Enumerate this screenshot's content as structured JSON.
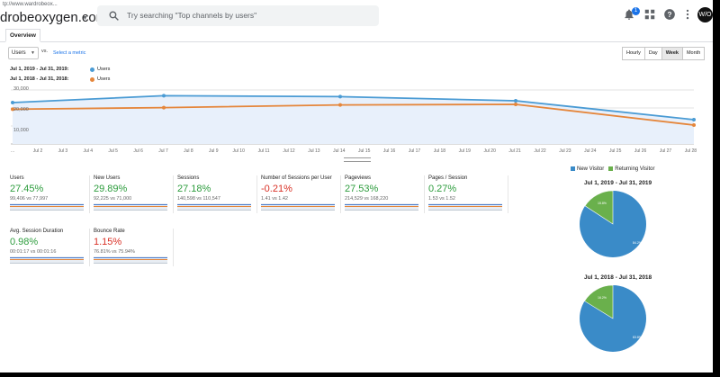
{
  "header": {
    "url": "tp://www.wardrobeox...",
    "site_name": "drobeoxygen.com",
    "search_placeholder": "Try searching \"Top channels by users\"",
    "notification_count": "1",
    "avatar_text": "W/O"
  },
  "tabs": [
    "Overview"
  ],
  "controls": {
    "metric_select": "Users",
    "vs_label": "vs.",
    "select_metric_link": "Select a metric",
    "period_buttons": [
      "Hourly",
      "Day",
      "Week",
      "Month"
    ],
    "active_period": "Week"
  },
  "legend": [
    {
      "range": "Jul 1, 2019 - Jul 31, 2019:",
      "label": "Users",
      "color": "#4a9bd4"
    },
    {
      "range": "Jul 1, 2018 - Jul 31, 2018:",
      "label": "Users",
      "color": "#e5863b"
    }
  ],
  "chart_data": {
    "type": "line",
    "x_ticks": [
      "...",
      "Jul 2",
      "Jul 3",
      "Jul 4",
      "Jul 5",
      "Jul 6",
      "Jul 7",
      "Jul 8",
      "Jul 9",
      "Jul 10",
      "Jul 11",
      "Jul 12",
      "Jul 13",
      "Jul 14",
      "Jul 15",
      "Jul 16",
      "Jul 17",
      "Jul 18",
      "Jul 19",
      "Jul 20",
      "Jul 21",
      "Jul 22",
      "Jul 23",
      "Jul 24",
      "Jul 25",
      "Jul 26",
      "Jul 27",
      "Jul 28"
    ],
    "y_ticks": [
      "30,000",
      "20,000",
      "10,000"
    ],
    "ylim": [
      0,
      30000
    ],
    "series": [
      {
        "name": "Users",
        "color": "#4a9bd4",
        "x": [
          "Jun 30",
          "Jul 7",
          "Jul 14",
          "Jul 21",
          "Jul 28"
        ],
        "values": [
          23000,
          26800,
          26300,
          24000,
          13500
        ]
      },
      {
        "name": "Users",
        "color": "#e5863b",
        "x": [
          "Jun 30",
          "Jul 7",
          "Jul 14",
          "Jul 21",
          "Jul 28"
        ],
        "values": [
          19300,
          20200,
          21700,
          22000,
          10500
        ]
      }
    ],
    "grid": true
  },
  "metrics": [
    {
      "name": "Users",
      "value": "27.45%",
      "trend": "up",
      "comparison": "99,406 vs 77,997"
    },
    {
      "name": "New Users",
      "value": "29.89%",
      "trend": "up",
      "comparison": "92,225 vs 71,000"
    },
    {
      "name": "Sessions",
      "value": "27.18%",
      "trend": "up",
      "comparison": "140,598 vs 110,547"
    },
    {
      "name": "Number of Sessions per User",
      "value": "-0.21%",
      "trend": "down",
      "comparison": "1.41 vs 1.42"
    },
    {
      "name": "Pageviews",
      "value": "27.53%",
      "trend": "up",
      "comparison": "214,529 vs 168,220"
    },
    {
      "name": "Pages / Session",
      "value": "0.27%",
      "trend": "up",
      "comparison": "1.53 vs 1.52"
    },
    {
      "name": "Avg. Session Duration",
      "value": "0.98%",
      "trend": "up",
      "comparison": "00:01:17 vs 00:01:16"
    },
    {
      "name": "Bounce Rate",
      "value": "1.15%",
      "trend": "down",
      "comparison": "76.81% vs 75.94%"
    }
  ],
  "pies": {
    "legend": [
      {
        "label": "New Visitor",
        "color": "#3a8bc8"
      },
      {
        "label": "Returning Visitor",
        "color": "#6ab04c"
      }
    ],
    "charts": [
      {
        "title": "Jul 1, 2019 - Jul 31, 2019",
        "new_pct": 84.2,
        "new_label": "84.2%",
        "ret_label": "15.8%"
      },
      {
        "title": "Jul 1, 2018 - Jul 31, 2018",
        "new_pct": 83.8,
        "new_label": "83.8%",
        "ret_label": "16.2%"
      }
    ]
  }
}
